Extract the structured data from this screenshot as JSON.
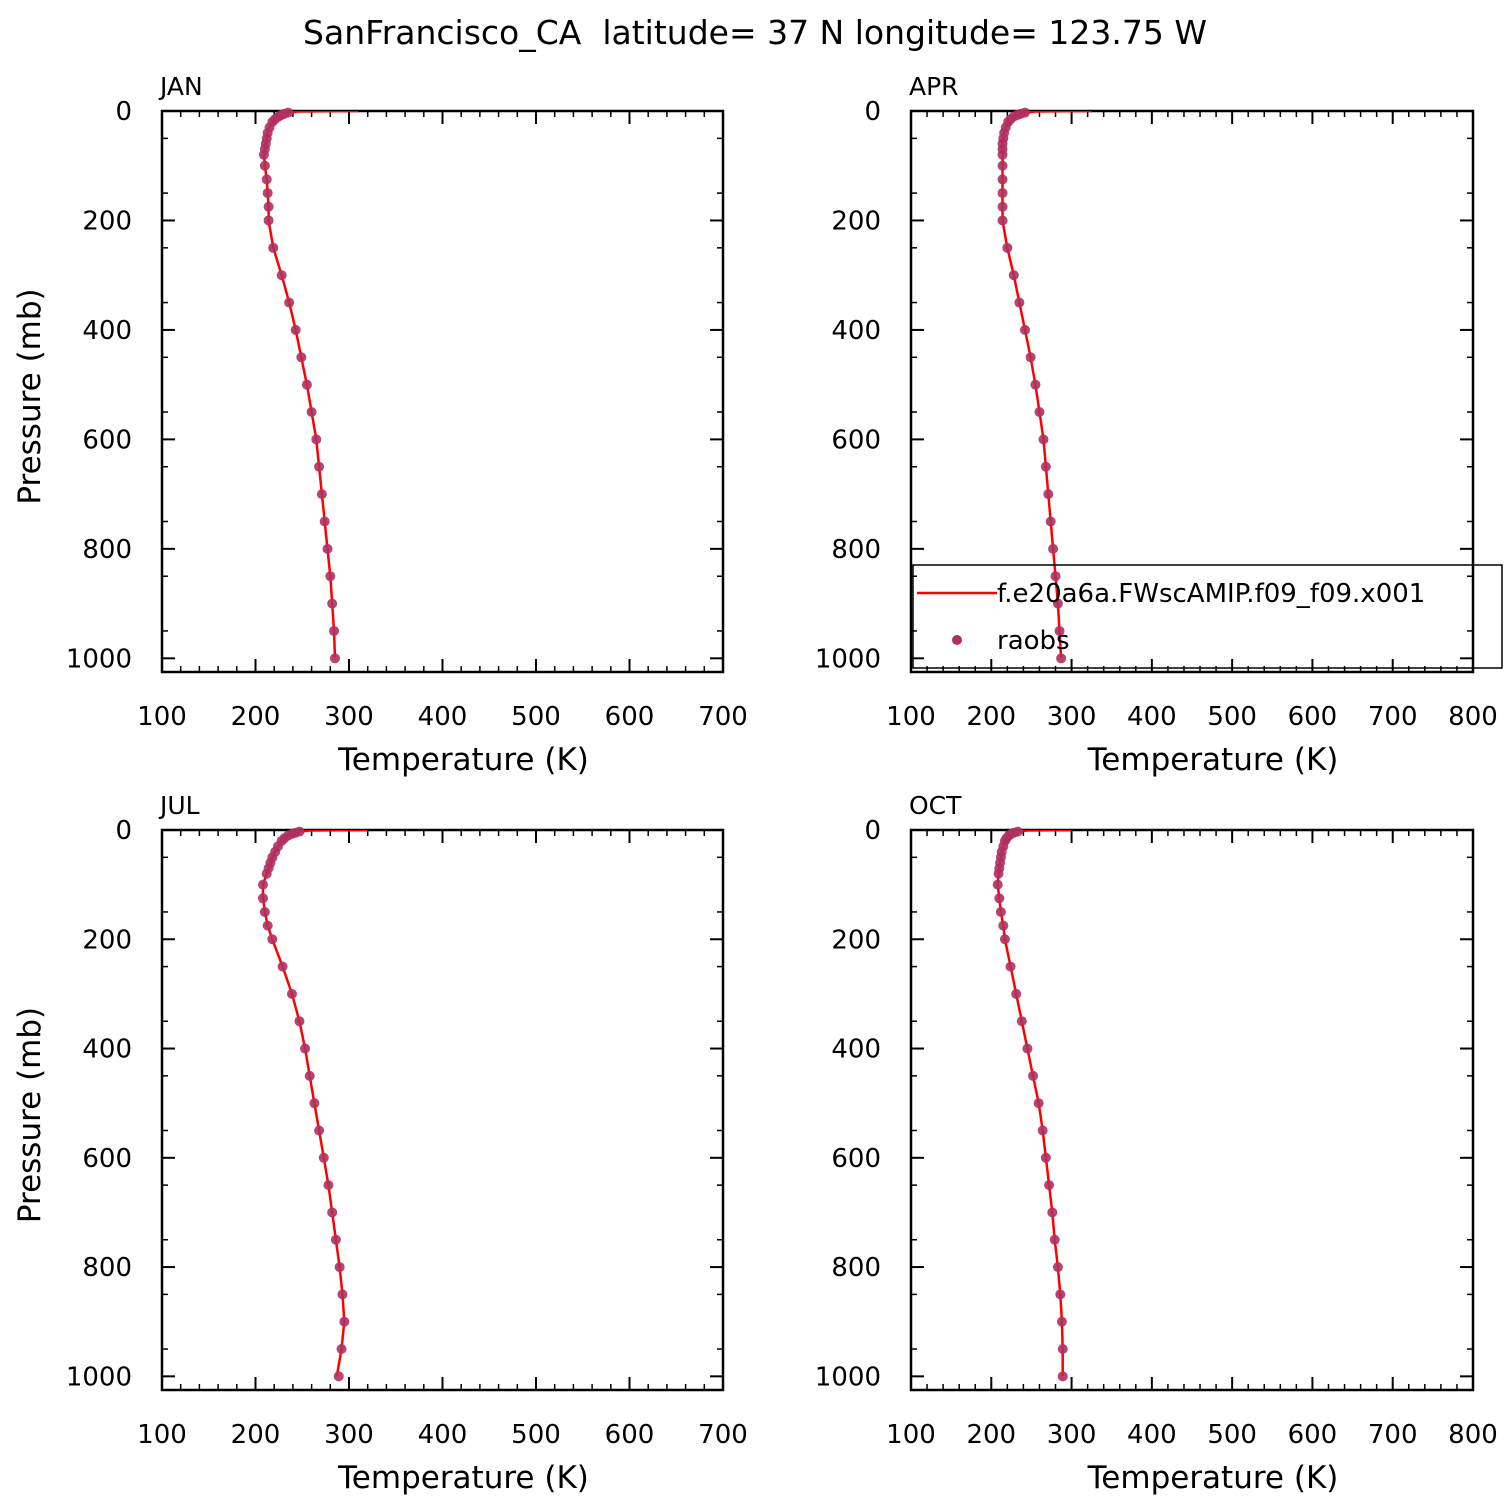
{
  "figure": {
    "title": "SanFrancisco_CA  latitude= 37 N longitude= 123.75 W",
    "colors": {
      "model_line": "#ff0000",
      "obs_marker": "#b03060"
    }
  },
  "legend": {
    "entries": [
      {
        "label": "f.e20a6a.FWscAMIP.f09_f09.x001",
        "style": "line"
      },
      {
        "label": "raobs",
        "style": "marker"
      }
    ]
  },
  "chart_data": [
    {
      "type": "line",
      "panel_label": "JAN",
      "xlabel": "Temperature (K)",
      "ylabel": "Pressure (mb)",
      "xlim": [
        100,
        700
      ],
      "ylim": [
        1025,
        0
      ],
      "xticks": [
        100,
        200,
        300,
        400,
        500,
        600,
        700
      ],
      "xtick_labels": [
        "100",
        "200",
        "300",
        "400",
        "500",
        "600",
        "700"
      ],
      "yticks": [
        0,
        200,
        400,
        600,
        800,
        1000
      ],
      "ytick_labels": [
        "0",
        "200",
        "400",
        "600",
        "800",
        "1000"
      ],
      "model": {
        "pressure": [
          0,
          1,
          3,
          5,
          7,
          10,
          15,
          20,
          30,
          40,
          50,
          60,
          70,
          80,
          100,
          125,
          150,
          175,
          200,
          250,
          300,
          350,
          400,
          450,
          500,
          550,
          600,
          650,
          700,
          750,
          800,
          850,
          900,
          950,
          1000
        ],
        "temperature": [
          310,
          245,
          236,
          231,
          228,
          225,
          221,
          218,
          215,
          213,
          212,
          211,
          210,
          209,
          210,
          212,
          213,
          214,
          214,
          219,
          228,
          236,
          243,
          249,
          255,
          260,
          265,
          268,
          271,
          274,
          277,
          280,
          282,
          284,
          285
        ]
      },
      "raobs": {
        "pressure": [
          3,
          5,
          7,
          10,
          15,
          20,
          30,
          40,
          50,
          60,
          70,
          80,
          100,
          125,
          150,
          175,
          200,
          250,
          300,
          350,
          400,
          450,
          500,
          550,
          600,
          650,
          700,
          750,
          800,
          850,
          900,
          950,
          1000
        ],
        "temperature": [
          235,
          231,
          228,
          225,
          221,
          218,
          215,
          213,
          212,
          211,
          210,
          209,
          210,
          212,
          213,
          214,
          214,
          219,
          228,
          236,
          243,
          249,
          255,
          260,
          265,
          268,
          271,
          274,
          277,
          280,
          282,
          284,
          285
        ]
      },
      "legend": false
    },
    {
      "type": "line",
      "panel_label": "APR",
      "xlabel": "Temperature (K)",
      "ylabel": "",
      "xlim": [
        100,
        800
      ],
      "ylim": [
        1025,
        0
      ],
      "xticks": [
        100,
        200,
        300,
        400,
        500,
        600,
        700,
        800
      ],
      "xtick_labels": [
        "100",
        "200",
        "300",
        "400",
        "500",
        "600",
        "700",
        "800"
      ],
      "yticks": [
        0,
        200,
        400,
        600,
        800,
        1000
      ],
      "ytick_labels": [
        "0",
        "200",
        "400",
        "600",
        "800",
        "1000"
      ],
      "model": {
        "pressure": [
          0,
          1,
          3,
          5,
          7,
          10,
          15,
          20,
          30,
          40,
          50,
          60,
          70,
          80,
          100,
          125,
          150,
          175,
          200,
          250,
          300,
          350,
          400,
          450,
          500,
          550,
          600,
          650,
          700,
          750,
          800,
          850,
          900,
          950,
          1000
        ],
        "temperature": [
          325,
          255,
          243,
          237,
          233,
          228,
          224,
          221,
          218,
          216,
          215,
          214,
          214,
          214,
          214,
          214,
          214,
          214,
          214,
          220,
          228,
          235,
          242,
          249,
          255,
          260,
          265,
          268,
          271,
          274,
          277,
          280,
          283,
          285,
          287
        ]
      },
      "raobs": {
        "pressure": [
          3,
          5,
          7,
          10,
          15,
          20,
          30,
          40,
          50,
          60,
          70,
          80,
          100,
          125,
          150,
          175,
          200,
          250,
          300,
          350,
          400,
          450,
          500,
          550,
          600,
          650,
          700,
          750,
          800,
          850,
          900,
          950,
          1000
        ],
        "temperature": [
          242,
          237,
          233,
          228,
          224,
          221,
          218,
          216,
          215,
          214,
          214,
          214,
          214,
          214,
          214,
          214,
          214,
          220,
          228,
          235,
          242,
          249,
          255,
          260,
          265,
          268,
          271,
          274,
          277,
          280,
          283,
          285,
          287
        ]
      },
      "legend": true
    },
    {
      "type": "line",
      "panel_label": "JUL",
      "xlabel": "Temperature (K)",
      "ylabel": "Pressure (mb)",
      "xlim": [
        100,
        700
      ],
      "ylim": [
        1025,
        0
      ],
      "xticks": [
        100,
        200,
        300,
        400,
        500,
        600,
        700
      ],
      "xtick_labels": [
        "100",
        "200",
        "300",
        "400",
        "500",
        "600",
        "700"
      ],
      "yticks": [
        0,
        200,
        400,
        600,
        800,
        1000
      ],
      "ytick_labels": [
        "0",
        "200",
        "400",
        "600",
        "800",
        "1000"
      ],
      "model": {
        "pressure": [
          0,
          1,
          3,
          5,
          7,
          10,
          15,
          20,
          30,
          40,
          50,
          60,
          70,
          80,
          100,
          125,
          150,
          175,
          200,
          250,
          300,
          350,
          400,
          450,
          500,
          550,
          600,
          650,
          700,
          750,
          800,
          850,
          900,
          950,
          1000
        ],
        "temperature": [
          320,
          258,
          248,
          243,
          239,
          235,
          231,
          228,
          224,
          221,
          218,
          216,
          214,
          212,
          208,
          208,
          210,
          213,
          218,
          229,
          239,
          247,
          253,
          258,
          263,
          268,
          273,
          278,
          282,
          286,
          290,
          293,
          295,
          292,
          287
        ]
      },
      "raobs": {
        "pressure": [
          3,
          5,
          7,
          10,
          15,
          20,
          30,
          40,
          50,
          60,
          70,
          80,
          100,
          125,
          150,
          175,
          200,
          250,
          300,
          350,
          400,
          450,
          500,
          550,
          600,
          650,
          700,
          750,
          800,
          850,
          900,
          950,
          1000
        ],
        "temperature": [
          247,
          243,
          239,
          235,
          231,
          228,
          224,
          221,
          218,
          216,
          214,
          212,
          208,
          208,
          210,
          213,
          218,
          229,
          239,
          247,
          253,
          258,
          263,
          268,
          273,
          278,
          282,
          286,
          290,
          293,
          295,
          292,
          289
        ]
      },
      "legend": false
    },
    {
      "type": "line",
      "panel_label": "OCT",
      "xlabel": "Temperature (K)",
      "ylabel": "",
      "xlim": [
        100,
        800
      ],
      "ylim": [
        1025,
        0
      ],
      "xticks": [
        100,
        200,
        300,
        400,
        500,
        600,
        700,
        800
      ],
      "xtick_labels": [
        "100",
        "200",
        "300",
        "400",
        "500",
        "600",
        "700",
        "800"
      ],
      "yticks": [
        0,
        200,
        400,
        600,
        800,
        1000
      ],
      "ytick_labels": [
        "0",
        "200",
        "400",
        "600",
        "800",
        "1000"
      ],
      "model": {
        "pressure": [
          0,
          1,
          3,
          5,
          7,
          10,
          15,
          20,
          30,
          40,
          50,
          60,
          70,
          80,
          100,
          125,
          150,
          175,
          200,
          250,
          300,
          350,
          400,
          450,
          500,
          550,
          600,
          650,
          700,
          750,
          800,
          850,
          900,
          950,
          1000
        ],
        "temperature": [
          300,
          245,
          233,
          228,
          225,
          222,
          219,
          217,
          215,
          213,
          212,
          211,
          210,
          209,
          208,
          210,
          212,
          215,
          217,
          224,
          231,
          238,
          245,
          252,
          259,
          264,
          268,
          272,
          276,
          279,
          283,
          286,
          288,
          289,
          289
        ]
      },
      "raobs": {
        "pressure": [
          3,
          5,
          7,
          10,
          15,
          20,
          30,
          40,
          50,
          60,
          70,
          80,
          100,
          125,
          150,
          175,
          200,
          250,
          300,
          350,
          400,
          450,
          500,
          550,
          600,
          650,
          700,
          750,
          800,
          850,
          900,
          950,
          1000
        ],
        "temperature": [
          233,
          228,
          225,
          222,
          219,
          217,
          215,
          213,
          212,
          211,
          210,
          209,
          208,
          210,
          212,
          215,
          217,
          224,
          231,
          238,
          245,
          252,
          259,
          264,
          268,
          272,
          276,
          279,
          283,
          286,
          288,
          289,
          289
        ]
      },
      "legend": false
    }
  ]
}
